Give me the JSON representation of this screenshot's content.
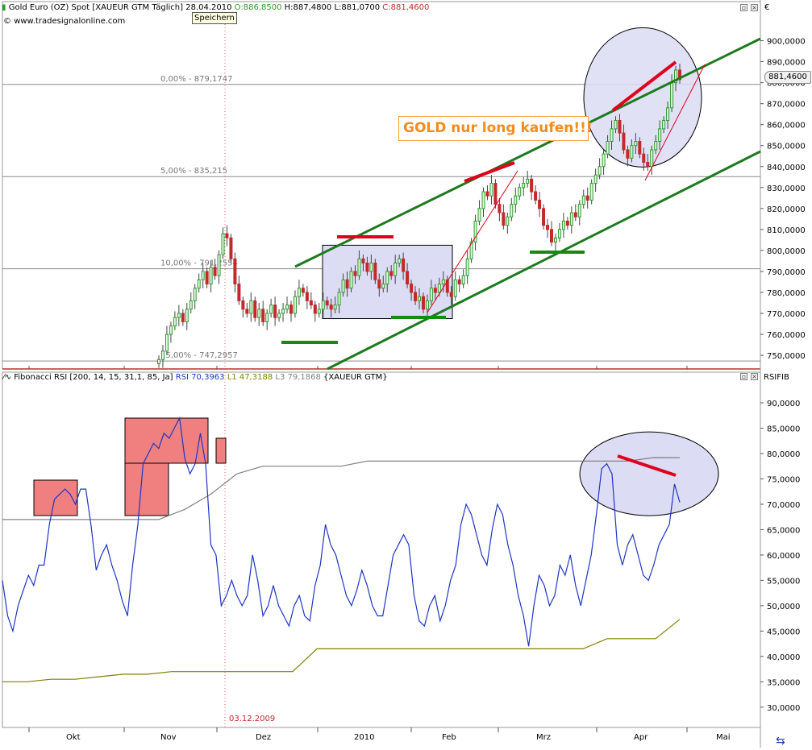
{
  "window": {
    "price_panel": {
      "symbol": "Gold Euro (OZ) Spot [XAUEUR GTM  Täglich]",
      "date": "28.04.2010",
      "open": "O:886,8500",
      "high": "H:887,4800",
      "low": "L:881,0700",
      "close": "C:881,4600",
      "source": "www.tradesignalonline.com",
      "currency_symbol": "€",
      "last_price": "881,4600"
    },
    "rsi_panel": {
      "indicator": "Fibonacci RSI [200, 14, 15, 31,1, 85, Ja]",
      "rsi_value": "RSI 70,3963",
      "l1_value": "L1 47,3188",
      "l3_value": "L3 79,1868",
      "symbol": "{XAUEUR GTM}",
      "axis_label": "RSIFIB"
    },
    "tooltip": "Speichern",
    "annotation": "GOLD nur long kaufen!!!",
    "crosshair_date": "03.12.2009"
  },
  "colors": {
    "candle_up": "#2e9a2e",
    "candle_down": "#c22a2a",
    "channel": "#1d7a1d",
    "support_marker": "#148c14",
    "resistance_marker": "#e0001c",
    "rsi_line": "#1f35c4",
    "l1_line": "#808000",
    "l3_line": "#808080",
    "highlight_fill": "#dcdcf4",
    "overbought_box": "#f08080",
    "annotation_text": "#f28c1c"
  },
  "chart_data": [
    {
      "type": "candlestick",
      "title": "Gold Euro (OZ) Spot [XAUEUR GTM  Täglich]",
      "x_labels": [
        "Okt",
        "Nov",
        "Dez",
        "2010",
        "Feb",
        "Mrz",
        "Apr",
        "Mai"
      ],
      "y_axis_ticks": [
        "750,0000",
        "760,0000",
        "770,0000",
        "780,0000",
        "790,0000",
        "800,0000",
        "810,0000",
        "820,0000",
        "830,0000",
        "840,0000",
        "850,0000",
        "860,0000",
        "870,0000",
        "880,0000",
        "890,0000",
        "900,0000"
      ],
      "ylim": [
        743.5,
        912.5
      ],
      "fibonacci_levels": [
        {
          "label": "0,00% - 879,1747",
          "value": 879.1747
        },
        {
          "label": "5,00% - 835,215",
          "value": 835.215
        },
        {
          "label": "10,00% - 791,2554",
          "value": 791.2554
        },
        {
          "label": "15,00% - 747,2957",
          "value": 747.2957
        }
      ],
      "last_close": 881.46,
      "series_close": [
        748,
        752,
        760,
        764,
        768,
        770,
        766,
        772,
        776,
        782,
        786,
        790,
        784,
        792,
        788,
        798,
        808,
        806,
        796,
        784,
        776,
        772,
        770,
        776,
        768,
        772,
        766,
        770,
        774,
        768,
        770,
        772,
        774,
        770,
        778,
        782,
        780,
        776,
        774,
        770,
        772,
        776,
        774,
        772,
        774,
        780,
        786,
        782,
        790,
        788,
        796,
        794,
        790,
        794,
        786,
        782,
        784,
        790,
        788,
        794,
        796,
        790,
        784,
        780,
        776,
        778,
        772,
        776,
        782,
        780,
        784,
        786,
        780,
        778,
        786,
        784,
        788,
        796,
        804,
        814,
        820,
        828,
        826,
        832,
        822,
        818,
        812,
        816,
        822,
        826,
        830,
        832,
        834,
        828,
        824,
        820,
        812,
        810,
        804,
        806,
        810,
        814,
        812,
        818,
        816,
        822,
        826,
        824,
        832,
        836,
        840,
        846,
        852,
        858,
        862,
        856,
        848,
        844,
        850,
        852,
        846,
        842,
        840,
        848,
        852,
        858,
        862,
        868,
        880,
        886,
        881.46
      ],
      "candlesticks_note": "daily OHLC approximated from chart; close values listed in series_close"
    },
    {
      "type": "line",
      "title": "Fibonacci RSI [200, 14, 15, 31,1, 85, Ja]",
      "ylabel": "RSIFIB",
      "y_axis_ticks": [
        "30,0000",
        "35,0000",
        "40,0000",
        "45,0000",
        "50,0000",
        "55,0000",
        "60,0000",
        "65,0000",
        "70,0000",
        "75,0000",
        "80,0000",
        "85,0000",
        "90,0000"
      ],
      "ylim": [
        26,
        93.5
      ],
      "series": [
        {
          "name": "RSI",
          "last": 70.3963,
          "values": [
            55,
            48,
            45,
            50,
            53,
            56,
            54,
            58,
            58,
            66,
            71,
            72,
            73,
            72,
            70,
            73,
            73,
            66,
            57,
            60,
            62,
            58,
            55,
            51,
            48,
            58,
            66,
            78,
            80,
            82,
            81,
            84,
            83,
            85,
            87,
            79,
            76,
            78,
            84,
            78,
            62,
            60,
            50,
            52,
            55,
            52,
            50,
            52,
            60,
            55,
            48,
            50,
            54,
            50,
            48,
            46,
            50,
            52,
            48,
            47,
            54,
            58,
            66,
            62,
            60,
            56,
            52,
            50,
            53,
            57,
            54,
            50,
            48,
            48,
            54,
            60,
            62,
            64,
            62,
            52,
            47,
            46,
            50,
            52,
            47,
            50,
            55,
            58,
            66,
            70,
            68,
            64,
            60,
            58,
            65,
            70,
            68,
            62,
            58,
            52,
            48,
            42,
            50,
            56,
            54,
            50,
            52,
            58,
            56,
            60,
            54,
            50,
            55,
            60,
            68,
            77,
            78,
            76,
            62,
            58,
            62,
            64,
            60,
            56,
            55,
            58,
            62,
            64,
            66,
            74,
            70.3963
          ]
        },
        {
          "name": "L1",
          "last": 47.3188,
          "values": [
            35,
            35,
            35.5,
            35.5,
            36,
            36.5,
            36.5,
            37,
            37,
            37,
            37,
            37,
            37,
            41.5,
            41.5,
            41.5,
            41.5,
            41.5,
            41.5,
            41.5,
            41.5,
            41.5,
            41.5,
            41.5,
            41.5,
            43.5,
            43.5,
            43.5,
            47.3188
          ]
        },
        {
          "name": "L3",
          "last": 79.1868,
          "values": [
            67,
            67,
            67,
            67,
            67,
            67,
            67,
            69,
            72,
            76,
            77.5,
            77.5,
            77.5,
            77.5,
            78.5,
            78.5,
            78.5,
            78.5,
            78.5,
            78.5,
            78.5,
            78.5,
            78.5,
            78.5,
            78.5,
            79.2,
            79.1868
          ]
        }
      ],
      "x_labels": [
        "Okt",
        "Nov",
        "Dez",
        "2010",
        "Feb",
        "Mrz",
        "Apr",
        "Mai"
      ]
    }
  ]
}
